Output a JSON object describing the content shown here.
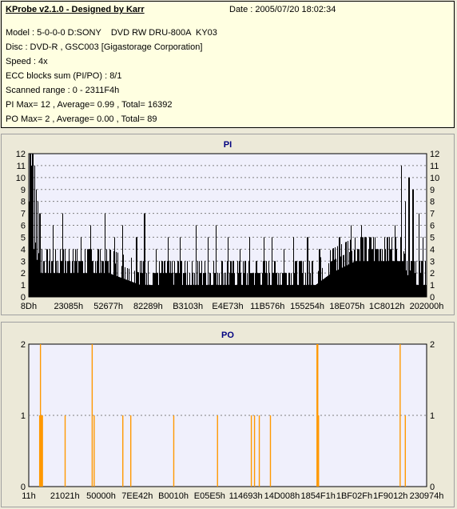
{
  "info": {
    "title": "KProbe v2.1.0 - Designed by Karr",
    "date": "Date : 2005/07/20 18:02:34",
    "lines": [
      "Model : 5-0-0-0 D:SONY    DVD RW DRU-800A  KY03",
      "Disc : DVD-R , GSC003 [Gigastorage Corporation]",
      "Speed : 4x",
      "ECC blocks sum (PI/PO) : 8/1",
      "Scanned range : 0 - 2311F4h",
      "PI Max= 12 , Average= 0.99 , Total= 16392",
      "PO Max= 2 , Average= 0.00 , Total= 89"
    ]
  },
  "colors": {
    "pi_fill": "#000000",
    "po_fill": "#ff9900",
    "plot_bg": "#f0f0fc",
    "title_color": "#000080",
    "grid_color": "#808080"
  },
  "chart_data": [
    {
      "type": "bar",
      "title": "PI",
      "ylim": [
        0,
        12
      ],
      "yticks": [
        0,
        1,
        2,
        3,
        4,
        5,
        6,
        7,
        8,
        9,
        10,
        11,
        12
      ],
      "grid": true,
      "xlim": [
        0,
        2298740
      ],
      "xtick_labels": [
        "8Dh",
        "23085h",
        "52677h",
        "82289h",
        "B3103h",
        "E4E73h",
        "11B576h",
        "155254h",
        "18E075h",
        "1C8012h",
        "202000h"
      ],
      "baseline_levels": [
        [
          0.0,
          8
        ],
        [
          0.012,
          5
        ],
        [
          0.03,
          3
        ],
        [
          0.1,
          3
        ],
        [
          0.2,
          3
        ],
        [
          0.28,
          2
        ],
        [
          0.35,
          2
        ],
        [
          0.45,
          2
        ],
        [
          0.55,
          2
        ],
        [
          0.65,
          2
        ],
        [
          0.72,
          2
        ],
        [
          0.76,
          3
        ],
        [
          0.82,
          4
        ],
        [
          0.9,
          4
        ],
        [
          0.94,
          4
        ],
        [
          0.96,
          2
        ],
        [
          1.0,
          2
        ]
      ],
      "peaks": [
        [
          0.003,
          12
        ],
        [
          0.006,
          11
        ],
        [
          0.009,
          12
        ],
        [
          0.014,
          11
        ],
        [
          0.018,
          9
        ],
        [
          0.022,
          8
        ],
        [
          0.027,
          7
        ],
        [
          0.06,
          6
        ],
        [
          0.085,
          7
        ],
        [
          0.11,
          4
        ],
        [
          0.13,
          5
        ],
        [
          0.155,
          6
        ],
        [
          0.19,
          7
        ],
        [
          0.215,
          5
        ],
        [
          0.235,
          6
        ],
        [
          0.27,
          5
        ],
        [
          0.29,
          7
        ],
        [
          0.32,
          4
        ],
        [
          0.35,
          5
        ],
        [
          0.38,
          5
        ],
        [
          0.42,
          6
        ],
        [
          0.45,
          5
        ],
        [
          0.47,
          6
        ],
        [
          0.5,
          5
        ],
        [
          0.53,
          4
        ],
        [
          0.555,
          5
        ],
        [
          0.59,
          5
        ],
        [
          0.61,
          5
        ],
        [
          0.64,
          4
        ],
        [
          0.665,
          5
        ],
        [
          0.7,
          5
        ],
        [
          0.73,
          4
        ],
        [
          0.78,
          5
        ],
        [
          0.81,
          6
        ],
        [
          0.835,
          6
        ],
        [
          0.86,
          5
        ],
        [
          0.9,
          5
        ],
        [
          0.92,
          6
        ],
        [
          0.935,
          11
        ],
        [
          0.945,
          8
        ],
        [
          0.955,
          10
        ],
        [
          0.965,
          9
        ],
        [
          0.98,
          7
        ],
        [
          0.99,
          5
        ]
      ]
    },
    {
      "type": "bar",
      "title": "PO",
      "ylim": [
        0,
        2
      ],
      "yticks": [
        0,
        1,
        2
      ],
      "grid": true,
      "xlim": [
        0,
        2297300
      ],
      "xtick_labels": [
        "11h",
        "21021h",
        "50000h",
        "7EE42h",
        "B0010h",
        "E05E5h",
        "114693h",
        "14D008h",
        "1854F1h",
        "1BF02Fh",
        "1F9012h",
        "230974h"
      ],
      "spikes": [
        [
          0.028,
          2
        ],
        [
          0.026,
          1
        ],
        [
          0.027,
          1
        ],
        [
          0.029,
          1
        ],
        [
          0.031,
          1
        ],
        [
          0.033,
          1
        ],
        [
          0.09,
          1
        ],
        [
          0.158,
          2
        ],
        [
          0.163,
          1
        ],
        [
          0.235,
          1
        ],
        [
          0.255,
          1
        ],
        [
          0.363,
          1
        ],
        [
          0.473,
          1
        ],
        [
          0.558,
          1
        ],
        [
          0.566,
          1
        ],
        [
          0.578,
          1
        ],
        [
          0.606,
          1
        ],
        [
          0.723,
          2
        ],
        [
          0.725,
          2
        ],
        [
          0.727,
          1
        ],
        [
          0.932,
          2
        ],
        [
          0.945,
          1
        ]
      ]
    }
  ]
}
